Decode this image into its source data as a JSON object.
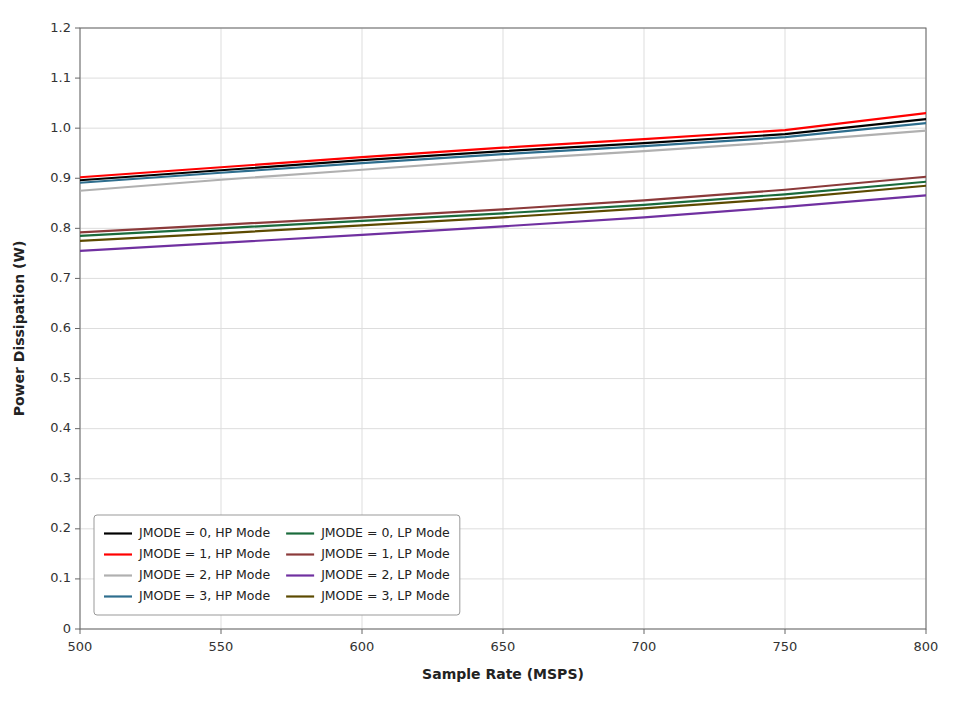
{
  "chart_data": {
    "type": "line",
    "x": [
      500,
      550,
      600,
      650,
      700,
      750,
      800
    ],
    "series": [
      {
        "name": "JMODE = 0, HP Mode",
        "color": "#000000",
        "values": [
          0.896,
          0.916,
          0.936,
          0.954,
          0.97,
          0.988,
          1.018
        ]
      },
      {
        "name": "JMODE = 1, HP Mode",
        "color": "#ff0000",
        "values": [
          0.902,
          0.922,
          0.942,
          0.961,
          0.978,
          0.996,
          1.03
        ]
      },
      {
        "name": "JMODE = 2, HP Mode",
        "color": "#b0b0b0",
        "values": [
          0.875,
          0.897,
          0.917,
          0.937,
          0.954,
          0.973,
          0.995
        ]
      },
      {
        "name": "JMODE = 3, HP Mode",
        "color": "#2e6e8e",
        "values": [
          0.891,
          0.911,
          0.93,
          0.948,
          0.964,
          0.982,
          1.01
        ]
      },
      {
        "name": "JMODE = 0, LP Mode",
        "color": "#1a6b3c",
        "values": [
          0.785,
          0.8,
          0.815,
          0.83,
          0.847,
          0.868,
          0.893
        ]
      },
      {
        "name": "JMODE = 1, LP Mode",
        "color": "#8b3a3a",
        "values": [
          0.792,
          0.807,
          0.822,
          0.838,
          0.856,
          0.877,
          0.903
        ]
      },
      {
        "name": "JMODE = 2, LP Mode",
        "color": "#7030a0",
        "values": [
          0.755,
          0.771,
          0.787,
          0.804,
          0.822,
          0.843,
          0.866
        ]
      },
      {
        "name": "JMODE = 3, LP Mode",
        "color": "#5c4a00",
        "values": [
          0.775,
          0.79,
          0.806,
          0.822,
          0.84,
          0.86,
          0.885
        ]
      }
    ],
    "xlabel": "Sample Rate (MSPS)",
    "ylabel": "Power Dissipation (W)",
    "xlim": [
      500,
      800
    ],
    "ylim": [
      0,
      1.2
    ],
    "xticks": [
      500,
      550,
      600,
      650,
      700,
      750,
      800
    ],
    "yticks": [
      0,
      0.1,
      0.2,
      0.3,
      0.4,
      0.5,
      0.6,
      0.7,
      0.8,
      0.9,
      {
        "value": 1.0,
        "label": "1.0"
      },
      1.1,
      1.2
    ],
    "grid": true,
    "legend": "lower left"
  }
}
